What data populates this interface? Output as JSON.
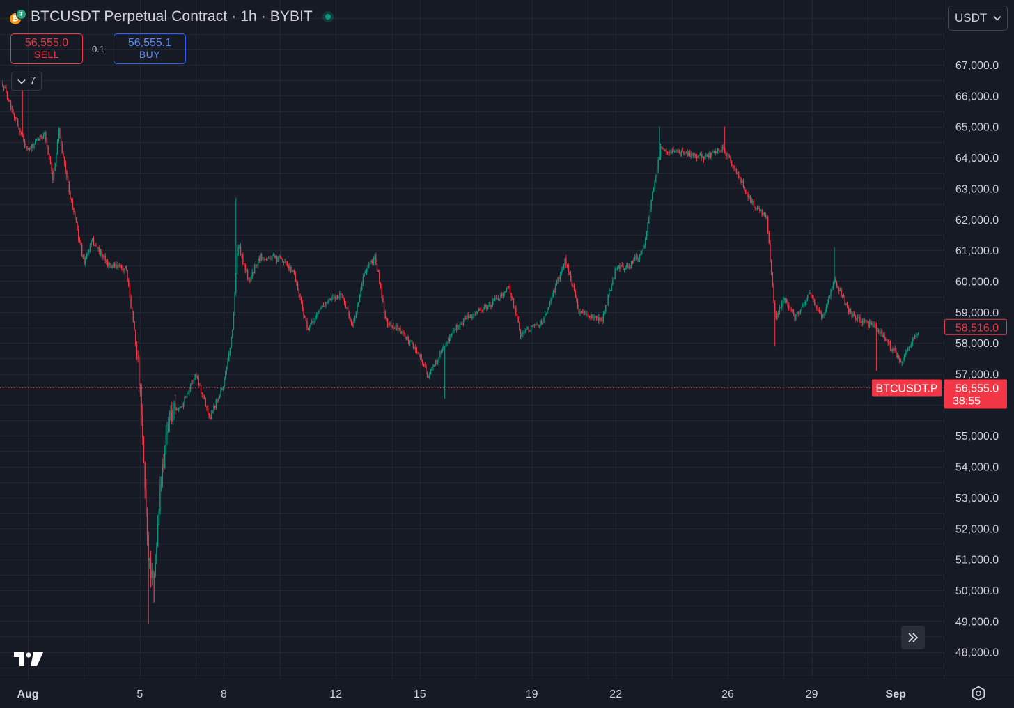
{
  "header": {
    "title": "BTCUSDT Perpetual Contract · 1h · BYBIT",
    "base_icon": "bitcoin-icon",
    "quote_icon": "tether-icon",
    "status_icon": "market-open-dot-icon"
  },
  "trade": {
    "sell_price": "56,555.0",
    "sell_label": "SELL",
    "quantity": "0.1",
    "buy_price": "56,555.1",
    "buy_label": "BUY"
  },
  "indicators_toggle": {
    "icon": "chevron-down-icon",
    "count": "7"
  },
  "currency_selector": {
    "value": "USDT",
    "icon": "chevron-down-icon"
  },
  "scroll_to_latest_icon": "double-chevron-right-icon",
  "logo_icon": "tradingview-logo-icon",
  "settings_icon": "gear-icon",
  "colors": {
    "up": "#089981",
    "down": "#f23645",
    "background": "#161a25",
    "grid": "#232733",
    "axis_text": "#d1d4dc"
  },
  "chart_data": {
    "type": "candlestick",
    "series_name": "BTCUSDT.P",
    "interval": "1h",
    "ylim": [
      47300,
      68300
    ],
    "y_ticks": [
      48000,
      49000,
      50000,
      51000,
      52000,
      53000,
      54000,
      55000,
      56000,
      57000,
      58000,
      59000,
      60000,
      61000,
      62000,
      63000,
      64000,
      65000,
      66000,
      67000
    ],
    "y_tick_labels": [
      "48,000.0",
      "49,000.0",
      "50,000.0",
      "51,000.0",
      "52,000.0",
      "53,000.0",
      "54,000.0",
      "55,000.0",
      "",
      "57,000.0",
      "58,000.0",
      "59,000.0",
      "60,000.0",
      "61,000.0",
      "62,000.0",
      "63,000.0",
      "64,000.0",
      "65,000.0",
      "66,000.0",
      "67,000.0"
    ],
    "x_ticks": [
      {
        "label": "Aug",
        "day": 1,
        "bold": true
      },
      {
        "label": "5",
        "day": 5
      },
      {
        "label": "8",
        "day": 8
      },
      {
        "label": "12",
        "day": 12
      },
      {
        "label": "15",
        "day": 15
      },
      {
        "label": "19",
        "day": 19
      },
      {
        "label": "22",
        "day": 22
      },
      {
        "label": "26",
        "day": 26
      },
      {
        "label": "29",
        "day": 29
      },
      {
        "label": "Sep",
        "day": 32,
        "bold": true
      }
    ],
    "date_range": [
      "2024-08-01",
      "2024-09-02"
    ],
    "close_path_anchors": [
      [
        0.1,
        66400
      ],
      [
        1.0,
        64200
      ],
      [
        1.6,
        64800
      ],
      [
        1.9,
        63200
      ],
      [
        2.1,
        64900
      ],
      [
        2.4,
        63300
      ],
      [
        3.0,
        60600
      ],
      [
        3.3,
        61300
      ],
      [
        3.9,
        60500
      ],
      [
        4.5,
        60400
      ],
      [
        4.8,
        58500
      ],
      [
        5.0,
        56600
      ],
      [
        5.3,
        51200
      ],
      [
        5.5,
        50000
      ],
      [
        5.7,
        53000
      ],
      [
        6.0,
        55500
      ],
      [
        6.5,
        56000
      ],
      [
        7.0,
        57000
      ],
      [
        7.5,
        55600
      ],
      [
        8.0,
        56700
      ],
      [
        8.3,
        58300
      ],
      [
        8.5,
        61200
      ],
      [
        8.9,
        60000
      ],
      [
        9.3,
        60800
      ],
      [
        10.0,
        60700
      ],
      [
        10.5,
        60300
      ],
      [
        11.0,
        58400
      ],
      [
        11.5,
        59200
      ],
      [
        12.2,
        59600
      ],
      [
        12.6,
        58500
      ],
      [
        13.0,
        60200
      ],
      [
        13.4,
        60800
      ],
      [
        13.8,
        58700
      ],
      [
        14.4,
        58300
      ],
      [
        15.0,
        57600
      ],
      [
        15.3,
        56900
      ],
      [
        15.8,
        57800
      ],
      [
        16.3,
        58500
      ],
      [
        16.8,
        58900
      ],
      [
        17.5,
        59200
      ],
      [
        18.2,
        59800
      ],
      [
        18.6,
        58300
      ],
      [
        19.4,
        58700
      ],
      [
        20.2,
        60700
      ],
      [
        20.7,
        59000
      ],
      [
        21.5,
        58700
      ],
      [
        22.0,
        60400
      ],
      [
        22.5,
        60500
      ],
      [
        23.0,
        61000
      ],
      [
        23.3,
        62800
      ],
      [
        23.6,
        64300
      ],
      [
        24.0,
        64200
      ],
      [
        24.5,
        64100
      ],
      [
        25.2,
        64000
      ],
      [
        25.8,
        64300
      ],
      [
        26.3,
        63600
      ],
      [
        26.8,
        62600
      ],
      [
        27.4,
        62000
      ],
      [
        27.7,
        58700
      ],
      [
        28.0,
        59500
      ],
      [
        28.4,
        58800
      ],
      [
        28.9,
        59600
      ],
      [
        29.4,
        58800
      ],
      [
        29.8,
        60100
      ],
      [
        30.4,
        58900
      ],
      [
        30.8,
        58700
      ],
      [
        31.3,
        58500
      ],
      [
        31.8,
        57900
      ],
      [
        32.2,
        57400
      ],
      [
        32.5,
        57900
      ],
      [
        32.8,
        58400
      ]
    ],
    "low_spikes": [
      {
        "day": 5.3,
        "low": 48900
      },
      {
        "day": 5.5,
        "low": 49600
      },
      {
        "day": 15.9,
        "low": 56200
      },
      {
        "day": 27.7,
        "low": 57900
      },
      {
        "day": 31.3,
        "low": 57100
      }
    ],
    "high_spikes": [
      {
        "day": 0.8,
        "high": 66400
      },
      {
        "day": 8.45,
        "high": 62700
      },
      {
        "day": 23.55,
        "high": 65000
      },
      {
        "day": 25.9,
        "high": 65000
      },
      {
        "day": 29.8,
        "high": 61100
      }
    ],
    "last_price": 56555.0,
    "last_price_label": "56,555.0",
    "countdown": "38:55",
    "symbol_label": "BTCUSDT.P",
    "prev_close_marker": 58516.0,
    "prev_close_marker_label": "58,516.0"
  }
}
